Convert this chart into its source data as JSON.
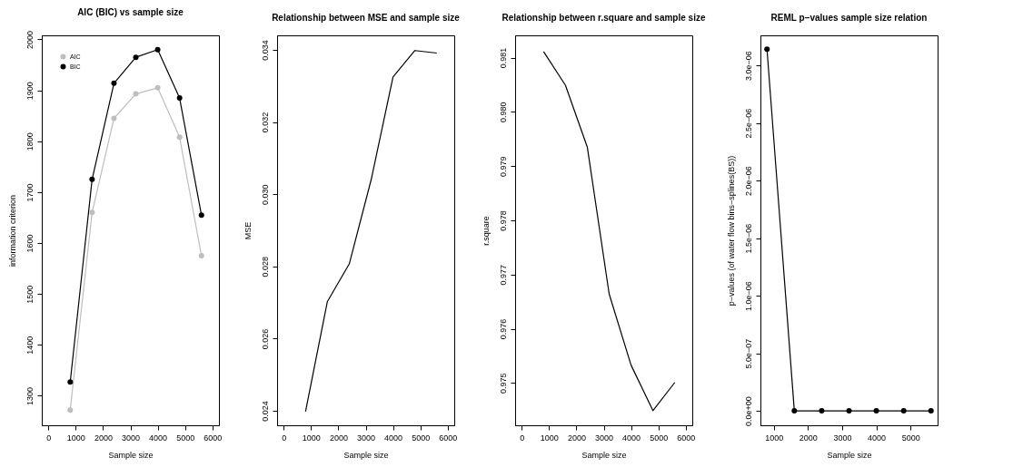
{
  "chart_data": [
    {
      "type": "line",
      "title": "AIC (BIC) vs sample size",
      "xlabel": "Sample size",
      "ylabel": "information criterion",
      "x": [
        800,
        1600,
        2400,
        3200,
        4000,
        4800,
        5600
      ],
      "xlim": [
        -240,
        6240
      ],
      "xticks": [
        0,
        1000,
        2000,
        3000,
        4000,
        5000,
        6000
      ],
      "ylim": [
        1242,
        2008
      ],
      "yticks": [
        1300,
        1400,
        1500,
        1600,
        1700,
        1800,
        1900,
        2000
      ],
      "marker": "circle",
      "legend": "top left",
      "series": [
        {
          "name": "AIC",
          "color": "#bebebe",
          "values": [
            1272,
            1660,
            1845,
            1893,
            1905,
            1808,
            1575
          ]
        },
        {
          "name": "BIC",
          "color": "#000000",
          "values": [
            1327,
            1725,
            1914,
            1965,
            1980,
            1885,
            1655
          ]
        }
      ]
    },
    {
      "type": "line",
      "title": "Relationship between MSE and sample size",
      "xlabel": "Sample size",
      "ylabel": "MSE",
      "x": [
        800,
        1600,
        2400,
        3200,
        4000,
        4800,
        5600
      ],
      "xlim": [
        -240,
        6240
      ],
      "xticks": [
        0,
        1000,
        2000,
        3000,
        4000,
        5000,
        6000
      ],
      "ylim": [
        0.0236,
        0.0344
      ],
      "yticks": [
        0.024,
        0.026,
        0.028,
        {
          "value": 0.03,
          "label": "0.030"
        },
        0.032,
        0.034
      ],
      "series": [
        {
          "color": "#000000",
          "values": [
            0.02398,
            0.02703,
            0.02807,
            0.0304,
            0.03325,
            0.03398,
            0.03391
          ]
        }
      ]
    },
    {
      "type": "line",
      "title": "Relationship between r.square and sample size",
      "xlabel": "Sample size",
      "ylabel": "r.square",
      "x": [
        800,
        1600,
        2400,
        3200,
        4000,
        4800,
        5600
      ],
      "xlim": [
        -240,
        6240
      ],
      "xticks": [
        0,
        1000,
        2000,
        3000,
        4000,
        5000,
        6000
      ],
      "ylim": [
        0.97422,
        0.98141
      ],
      "yticks": [
        0.975,
        0.976,
        0.977,
        0.978,
        0.979,
        {
          "value": 0.98,
          "label": "0.980"
        },
        0.981
      ],
      "series": [
        {
          "color": "#000000",
          "values": [
            0.98111,
            0.98049,
            0.97935,
            0.97664,
            0.97533,
            0.97449,
            0.97501
          ]
        }
      ]
    },
    {
      "type": "line",
      "title": "REML p−values sample size relation",
      "xlabel": "Sample size",
      "ylabel": "p−values (of water flow bins−splines(BS))",
      "x": [
        800,
        1600,
        2400,
        3200,
        4000,
        4800,
        5600
      ],
      "xlim": [
        608,
        5792
      ],
      "xticks": [
        1000,
        2000,
        3000,
        4000,
        5000
      ],
      "ylim": [
        -1.25e-07,
        3.26e-06
      ],
      "yticks": [
        {
          "value": 0,
          "label": "0.0e+00"
        },
        {
          "value": 5e-07,
          "label": "5.0e−07"
        },
        {
          "value": 1e-06,
          "label": "1.0e−06"
        },
        {
          "value": 1.5e-06,
          "label": "1.5e−06"
        },
        {
          "value": 2e-06,
          "label": "2.0e−06"
        },
        {
          "value": 2.5e-06,
          "label": "2.5e−06"
        },
        {
          "value": 3e-06,
          "label": "3.0e−06"
        }
      ],
      "marker": "circle",
      "series": [
        {
          "color": "#000000",
          "values": [
            3.14e-06,
            0,
            0,
            0,
            0,
            0,
            0
          ]
        }
      ]
    }
  ]
}
